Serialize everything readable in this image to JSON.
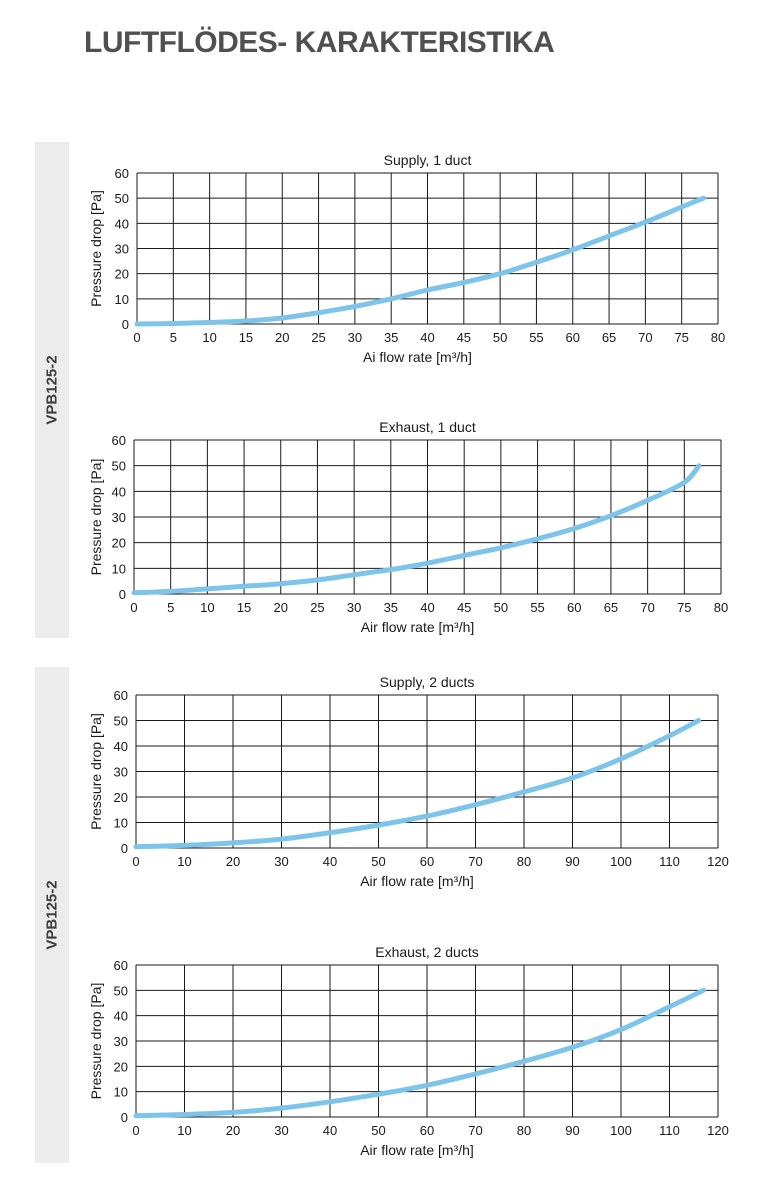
{
  "page": {
    "title": "LUFTFLÖDES- KARAKTERISTIKA",
    "sections": [
      {
        "label": "VPB125-2"
      },
      {
        "label": "VPB125-2"
      }
    ]
  },
  "colors": {
    "curve": "#7ec4ea",
    "grid": "#1a1a1a",
    "side_band": "#ececec",
    "title": "#505050"
  },
  "chart_data": [
    {
      "type": "line",
      "title": "Supply, 1 duct",
      "xlabel": "Ai flow rate [m³/h]",
      "ylabel": "Pressure drop [Pa]",
      "xlim": [
        0,
        80
      ],
      "ylim": [
        0,
        60
      ],
      "xticks": [
        0,
        5,
        10,
        15,
        20,
        25,
        30,
        35,
        40,
        45,
        50,
        55,
        60,
        65,
        70,
        75,
        80
      ],
      "yticks": [
        0,
        10,
        20,
        30,
        40,
        50,
        60
      ],
      "grid": true,
      "series": [
        {
          "x": [
            0,
            5,
            10,
            15,
            20,
            25,
            30,
            35,
            40,
            45,
            50,
            55,
            60,
            65,
            70,
            75,
            78
          ],
          "y": [
            0,
            0.2,
            0.6,
            1.2,
            2.4,
            4.5,
            7,
            10,
            13.5,
            16.5,
            20,
            24.5,
            29.5,
            35,
            40.5,
            46.5,
            50
          ]
        }
      ]
    },
    {
      "type": "line",
      "title": "Exhaust, 1 duct",
      "xlabel": "Air flow rate [m³/h]",
      "ylabel": "Pressure drop [Pa]",
      "xlim": [
        0,
        80
      ],
      "ylim": [
        0,
        60
      ],
      "xticks": [
        0,
        5,
        10,
        15,
        20,
        25,
        30,
        35,
        40,
        45,
        50,
        55,
        60,
        65,
        70,
        75,
        80
      ],
      "yticks": [
        0,
        10,
        20,
        30,
        40,
        50,
        60
      ],
      "grid": true,
      "series": [
        {
          "x": [
            0,
            5,
            10,
            15,
            20,
            25,
            30,
            35,
            40,
            45,
            50,
            55,
            60,
            65,
            70,
            75,
            77
          ],
          "y": [
            0.5,
            1,
            2,
            3,
            4,
            5.5,
            7.5,
            9.5,
            12,
            15,
            18,
            21.5,
            25.5,
            30.5,
            36.5,
            43.5,
            50
          ]
        }
      ]
    },
    {
      "type": "line",
      "title": "Supply, 2 ducts",
      "xlabel": "Air flow rate [m³/h]",
      "ylabel": "Pressure drop [Pa]",
      "xlim": [
        0,
        120
      ],
      "ylim": [
        0,
        60
      ],
      "xticks": [
        0,
        10,
        20,
        30,
        40,
        50,
        60,
        70,
        80,
        90,
        100,
        110,
        120
      ],
      "yticks": [
        0,
        10,
        20,
        30,
        40,
        50,
        60
      ],
      "grid": true,
      "series": [
        {
          "x": [
            0,
            10,
            20,
            30,
            40,
            50,
            60,
            70,
            80,
            90,
            100,
            110,
            116
          ],
          "y": [
            0.5,
            1,
            2,
            3.5,
            6,
            9,
            12.5,
            17,
            22,
            27.5,
            35,
            44,
            50
          ]
        }
      ]
    },
    {
      "type": "line",
      "title": "Exhaust, 2 ducts",
      "xlabel": "Air flow rate [m³/h]",
      "ylabel": "Pressure drop [Pa]",
      "xlim": [
        0,
        120
      ],
      "ylim": [
        0,
        60
      ],
      "xticks": [
        0,
        10,
        20,
        30,
        40,
        50,
        60,
        70,
        80,
        90,
        100,
        110,
        120
      ],
      "yticks": [
        0,
        10,
        20,
        30,
        40,
        50,
        60
      ],
      "grid": true,
      "series": [
        {
          "x": [
            0,
            10,
            20,
            30,
            40,
            50,
            60,
            70,
            80,
            90,
            100,
            110,
            117
          ],
          "y": [
            0.5,
            1,
            1.8,
            3.5,
            6,
            9,
            12.5,
            17,
            22,
            27.5,
            34.5,
            43.5,
            50
          ]
        }
      ]
    }
  ]
}
